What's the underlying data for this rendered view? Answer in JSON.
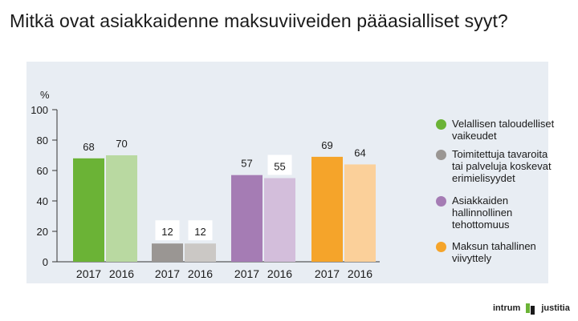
{
  "title": "Mitkä ovat asiakkaidenne maksuviiveiden pääasialliset syyt?",
  "colors": {
    "panel_bg": "#e8edf3",
    "axis": "#333333",
    "label_box": "#ffffff"
  },
  "chart_data": {
    "type": "bar",
    "title": "Mitkä ovat asiakkaidenne maksuviiveiden pääasialliset syyt?",
    "ylabel": "%",
    "ylim": [
      0,
      100
    ],
    "yticks": [
      0,
      20,
      40,
      60,
      80,
      100
    ],
    "grid": false,
    "legend_position": "right",
    "groups": [
      {
        "name": "Velallisen taloudelliset vaikeudet",
        "color": "#6bb336",
        "bars": [
          {
            "category": "2017",
            "value": 68,
            "color": "#6bb336",
            "label_box": false
          },
          {
            "category": "2016",
            "value": 70,
            "color": "#b9d9a1",
            "label_box": false
          }
        ]
      },
      {
        "name": "Toimitettuja tavaroita tai palveluja koskevat erimielisyydet",
        "color": "#9a9693",
        "bars": [
          {
            "category": "2017",
            "value": 12,
            "color": "#9a9693",
            "label_box": true
          },
          {
            "category": "2016",
            "value": 12,
            "color": "#cbc8c5",
            "label_box": true
          }
        ]
      },
      {
        "name": "Asiakkaiden hallinnollinen tehottomuus",
        "color": "#a57cb4",
        "bars": [
          {
            "category": "2017",
            "value": 57,
            "color": "#a57cb4",
            "label_box": false
          },
          {
            "category": "2016",
            "value": 55,
            "color": "#d3bedb",
            "label_box": true
          }
        ]
      },
      {
        "name": "Maksun tahallinen viivyttely",
        "color": "#f5a42a",
        "bars": [
          {
            "category": "2017",
            "value": 69,
            "color": "#f5a42a",
            "label_box": false
          },
          {
            "category": "2016",
            "value": 64,
            "color": "#fbd09a",
            "label_box": false
          }
        ]
      }
    ],
    "legend": [
      {
        "label": "Velallisen taloudelliset vaikeudet",
        "lines": [
          "Velallisen taloudelliset",
          "vaikeudet"
        ],
        "color": "#6bb336"
      },
      {
        "label": "Toimitettuja tavaroita tai palveluja koskevat erimielisyydet",
        "lines": [
          "Toimitettuja tavaroita",
          "tai palveluja koskevat",
          "erimielisyydet"
        ],
        "color": "#9a9693"
      },
      {
        "label": "Asiakkaiden hallinnollinen tehottomuus",
        "lines": [
          "Asiakkaiden",
          "hallinnollinen",
          "tehottomuus"
        ],
        "color": "#a57cb4"
      },
      {
        "label": "Maksun tahallinen viivyttely",
        "lines": [
          "Maksun tahallinen",
          "viivyttely"
        ],
        "color": "#f5a42a"
      }
    ]
  },
  "logo": {
    "left_text": "intrum",
    "right_text": "justitia",
    "mark_colors": [
      "#6bb336",
      "#1a1a1a"
    ]
  }
}
